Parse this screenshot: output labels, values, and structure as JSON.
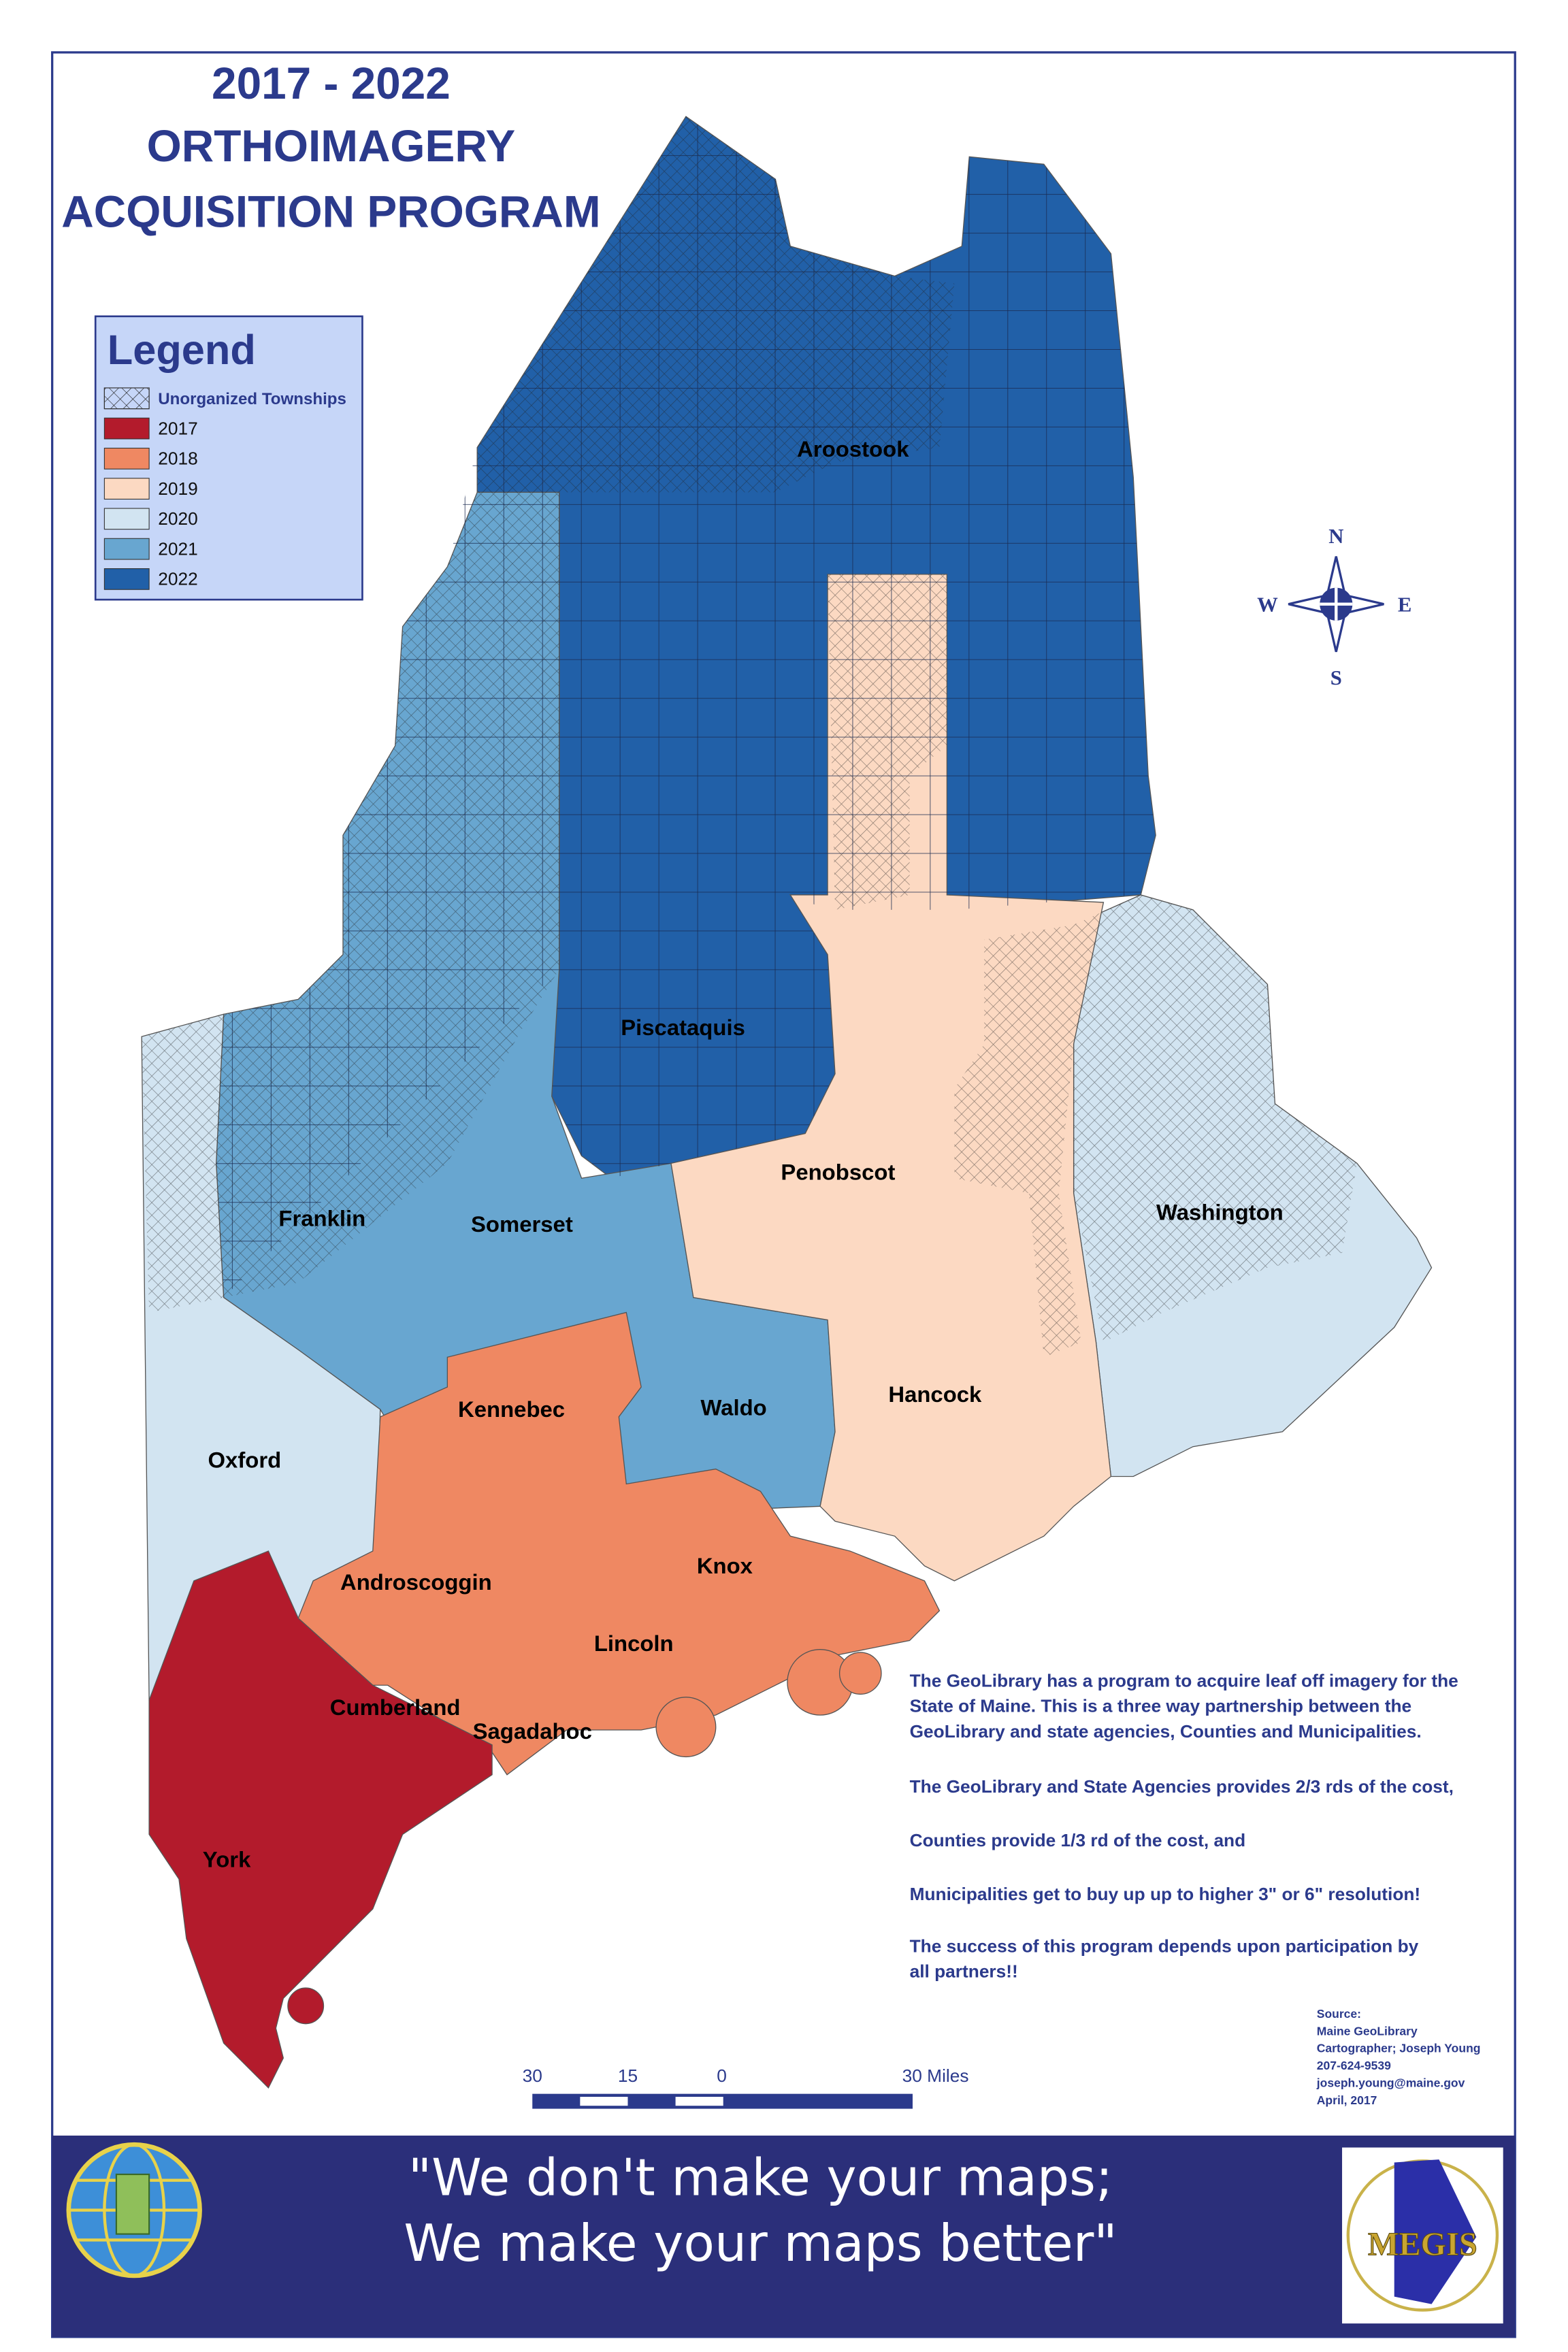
{
  "title": [
    "2017 - 2022",
    "ORTHOIMAGERY",
    "ACQUISITION PROGRAM"
  ],
  "legend": {
    "title": "Legend",
    "items": [
      "Unorganized Townships",
      "2017",
      "2018",
      "2019",
      "2020",
      "2021",
      "2022"
    ]
  },
  "counties": [
    "Aroostook",
    "Piscataquis",
    "Penobscot",
    "Washington",
    "Franklin",
    "Somerset",
    "Oxford",
    "Kennebec",
    "Waldo",
    "Hancock",
    "Androscoggin",
    "Knox",
    "Lincoln",
    "Cumberland",
    "Sagadahoc",
    "York"
  ],
  "compass": {
    "n": "N",
    "e": "E",
    "s": "S",
    "w": "W"
  },
  "description": [
    "The GeoLibrary has a program to acquire leaf off  imagery for the",
    "State of Maine. This is a three way partnership between the",
    "GeoLibrary and state agencies, Counties and Municipalities.",
    "The GeoLibrary and State Agencies provides 2/3 rds of the cost,",
    "Counties provide 1/3 rd of the cost, and",
    "Municipalities get to buy up up to higher 3\" or 6\" resolution!",
    "The success of this program depends upon participation by",
    "all partners!!"
  ],
  "source": [
    "Source:",
    "Maine GeoLibrary",
    "Cartographer; Joseph Young",
    "207-624-9539",
    "joseph.young@maine.gov",
    "April, 2017"
  ],
  "scale": [
    "30",
    "15",
    "0",
    "30 Miles"
  ],
  "footer": [
    "\"We don't make your maps;",
    "We make your maps better\""
  ],
  "logo": "MEGIS"
}
